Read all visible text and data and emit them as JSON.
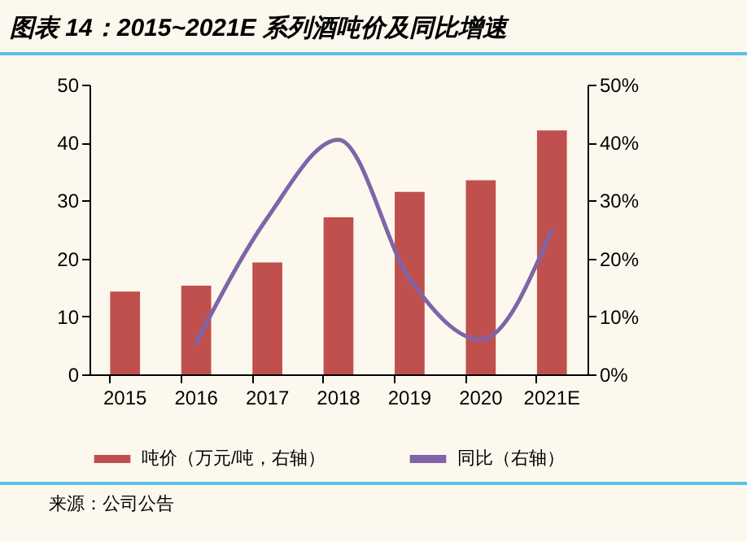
{
  "chart_data": {
    "type": "bar",
    "title": "图表 14：2015~2021E 系列酒吨价及同比增速",
    "categories": [
      "2015",
      "2016",
      "2017",
      "2018",
      "2019",
      "2020",
      "2021E"
    ],
    "series": [
      {
        "name": "吨价（万元/吨，右轴）",
        "color": "#c0504d",
        "values": [
          14.3,
          15.3,
          19.3,
          27.1,
          31.5,
          33.5,
          42.1
        ]
      },
      {
        "name": "同比（右轴）",
        "type": "line",
        "axis": "y2",
        "color": "#7f64a8",
        "values": [
          null,
          5.5,
          27,
          40.5,
          16.5,
          6,
          25
        ]
      }
    ],
    "ylim": [
      0,
      50
    ],
    "yticks": [
      0,
      10,
      20,
      30,
      40,
      50
    ],
    "y2lim": [
      0,
      50
    ],
    "y2ticks": [
      {
        "value": 0,
        "label": "0%"
      },
      {
        "value": 10,
        "label": "10%"
      },
      {
        "value": 20,
        "label": "20%"
      },
      {
        "value": 30,
        "label": "30%"
      },
      {
        "value": 40,
        "label": "40%"
      },
      {
        "value": 50,
        "label": "50%"
      }
    ],
    "legend": "bottom",
    "grid": false,
    "annotations": [
      "来源：公司公告"
    ]
  }
}
